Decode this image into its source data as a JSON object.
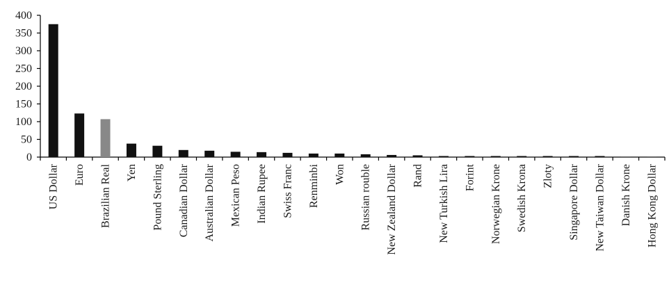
{
  "chart_data": {
    "type": "bar",
    "title": "",
    "xlabel": "",
    "ylabel": "",
    "ylim": [
      0,
      400
    ],
    "yticks": [
      0,
      50,
      100,
      150,
      200,
      250,
      300,
      350,
      400
    ],
    "grid": false,
    "legend": "none",
    "categories": [
      "US Dollar",
      "Euro",
      "Brazilian Real",
      "Yen",
      "Pound Sterling",
      "Canadian Dollar",
      "Australian Dollar",
      "Mexican Peso",
      "Indian Rupee",
      "Swiss Franc",
      "Renminbi",
      "Won",
      "Russian rouble",
      "New Zealand Dollar",
      "Rand",
      "New Turkish Lira",
      "Forint",
      "Norwegian Krone",
      "Swedish Krona",
      "Zloty",
      "Singapore Dollar",
      "New Taiwan Dollar",
      "Danish Krone",
      "Hong Kong Dollar"
    ],
    "values": [
      375,
      123,
      107,
      38,
      32,
      20,
      18,
      15,
      14,
      12,
      10,
      10,
      8,
      6,
      5,
      3,
      3,
      3,
      3,
      3,
      3,
      3,
      1,
      1
    ],
    "bar_colors": [
      "#111111",
      "#111111",
      "#888888",
      "#111111",
      "#111111",
      "#111111",
      "#111111",
      "#111111",
      "#111111",
      "#111111",
      "#111111",
      "#111111",
      "#111111",
      "#111111",
      "#111111",
      "#111111",
      "#111111",
      "#111111",
      "#111111",
      "#111111",
      "#111111",
      "#111111",
      "#111111",
      "#111111"
    ],
    "axis_color": "#000000"
  }
}
